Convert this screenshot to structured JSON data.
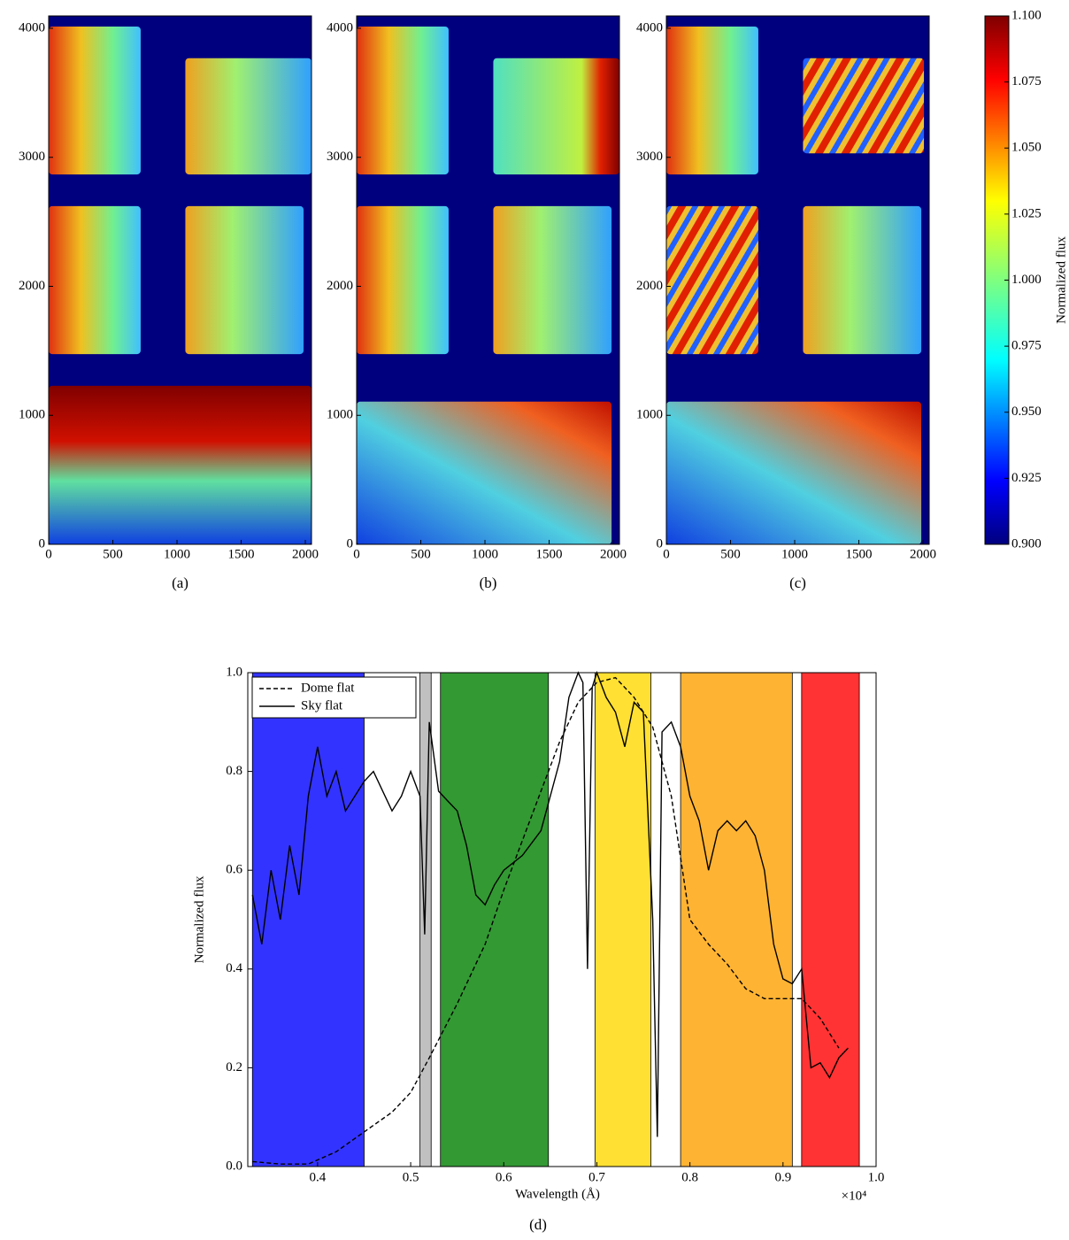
{
  "chart_data": [
    {
      "type": "heatmap",
      "caption": "(a)",
      "xlim": [
        0,
        2048
      ],
      "ylim": [
        0,
        4096
      ],
      "xticks": [
        0,
        500,
        1000,
        1500,
        2000
      ],
      "yticks": [
        0,
        1000,
        2000,
        3000,
        4000
      ]
    },
    {
      "type": "heatmap",
      "caption": "(b)",
      "xlim": [
        0,
        2048
      ],
      "ylim": [
        0,
        4096
      ],
      "xticks": [
        0,
        500,
        1000,
        1500,
        2000
      ],
      "yticks": [
        0,
        1000,
        2000,
        3000,
        4000
      ]
    },
    {
      "type": "heatmap",
      "caption": "(c)",
      "xlim": [
        0,
        2048
      ],
      "ylim": [
        0,
        4096
      ],
      "xticks": [
        0,
        500,
        1000,
        1500,
        2000
      ],
      "yticks": [
        0,
        1000,
        2000,
        3000,
        4000
      ]
    },
    {
      "type": "colorbar",
      "label": "Normalized flux",
      "ylim": [
        0.9,
        1.1
      ],
      "yticks": [
        {
          "value": 0.9,
          "label": "0.900"
        },
        {
          "value": 0.925,
          "label": "0.925"
        },
        {
          "value": 0.95,
          "label": "0.950"
        },
        {
          "value": 0.975,
          "label": "0.975"
        },
        {
          "value": 1.0,
          "label": "1.000"
        },
        {
          "value": 1.025,
          "label": "1.025"
        },
        {
          "value": 1.05,
          "label": "1.050"
        },
        {
          "value": 1.075,
          "label": "1.075"
        },
        {
          "value": 1.1,
          "label": "1.100"
        }
      ]
    },
    {
      "type": "line",
      "caption": "(d)",
      "x_label": "Wavelength (Å)",
      "y_label": "Normalized flux",
      "x_offset_label": "×10⁴",
      "xlim": [
        0.325,
        1.0
      ],
      "ylim": [
        0,
        1.0
      ],
      "xticks": [
        0.4,
        0.5,
        0.6,
        0.7,
        0.8,
        0.9,
        {
          "value": 1.0,
          "label": "1.0"
        }
      ],
      "yticks": [
        {
          "value": 0,
          "label": "0.0"
        },
        0.2,
        0.4,
        0.6,
        0.8,
        {
          "value": 1.0,
          "label": "1.0"
        }
      ],
      "bands": [
        {
          "start": 0.33,
          "end": 0.45,
          "color": "#3333ff"
        },
        {
          "start": 0.51,
          "end": 0.522,
          "color": "#c0c0c0"
        },
        {
          "start": 0.532,
          "end": 0.648,
          "color": "#339933"
        },
        {
          "start": 0.698,
          "end": 0.758,
          "color": "#ffe033"
        },
        {
          "start": 0.79,
          "end": 0.91,
          "color": "#ffb333"
        },
        {
          "start": 0.92,
          "end": 0.982,
          "color": "#ff3333"
        }
      ],
      "series": [
        {
          "name": "Dome flat",
          "color": "#000000",
          "dash": true,
          "x": [
            0.33,
            0.36,
            0.39,
            0.42,
            0.45,
            0.48,
            0.5,
            0.52,
            0.55,
            0.58,
            0.6,
            0.62,
            0.64,
            0.66,
            0.68,
            0.7,
            0.72,
            0.74,
            0.76,
            0.78,
            0.8,
            0.82,
            0.84,
            0.86,
            0.88,
            0.9,
            0.92,
            0.94,
            0.96
          ],
          "values": [
            0.01,
            0.005,
            0.005,
            0.03,
            0.07,
            0.11,
            0.15,
            0.22,
            0.33,
            0.45,
            0.56,
            0.66,
            0.76,
            0.86,
            0.94,
            0.98,
            0.99,
            0.95,
            0.89,
            0.75,
            0.5,
            0.45,
            0.41,
            0.36,
            0.34,
            0.34,
            0.34,
            0.3,
            0.24
          ]
        },
        {
          "name": "Sky flat",
          "color": "#000000",
          "dash": false,
          "x": [
            0.33,
            0.34,
            0.35,
            0.36,
            0.37,
            0.38,
            0.39,
            0.4,
            0.41,
            0.42,
            0.43,
            0.44,
            0.45,
            0.46,
            0.47,
            0.48,
            0.49,
            0.5,
            0.51,
            0.515,
            0.52,
            0.53,
            0.54,
            0.55,
            0.56,
            0.57,
            0.58,
            0.59,
            0.6,
            0.62,
            0.64,
            0.66,
            0.67,
            0.68,
            0.685,
            0.69,
            0.695,
            0.7,
            0.71,
            0.72,
            0.73,
            0.74,
            0.75,
            0.76,
            0.765,
            0.77,
            0.78,
            0.79,
            0.8,
            0.81,
            0.82,
            0.83,
            0.84,
            0.85,
            0.86,
            0.87,
            0.88,
            0.89,
            0.9,
            0.91,
            0.92,
            0.93,
            0.94,
            0.95,
            0.96,
            0.97
          ],
          "values": [
            0.55,
            0.45,
            0.6,
            0.5,
            0.65,
            0.55,
            0.75,
            0.85,
            0.75,
            0.8,
            0.72,
            0.75,
            0.78,
            0.8,
            0.76,
            0.72,
            0.75,
            0.8,
            0.75,
            0.47,
            0.9,
            0.76,
            0.74,
            0.72,
            0.65,
            0.55,
            0.53,
            0.57,
            0.6,
            0.63,
            0.68,
            0.82,
            0.95,
            1.0,
            0.98,
            0.4,
            0.97,
            1.0,
            0.95,
            0.92,
            0.85,
            0.94,
            0.92,
            0.5,
            0.06,
            0.88,
            0.9,
            0.85,
            0.75,
            0.7,
            0.6,
            0.68,
            0.7,
            0.68,
            0.7,
            0.67,
            0.6,
            0.45,
            0.38,
            0.37,
            0.4,
            0.2,
            0.21,
            0.18,
            0.22,
            0.24
          ]
        }
      ]
    }
  ]
}
